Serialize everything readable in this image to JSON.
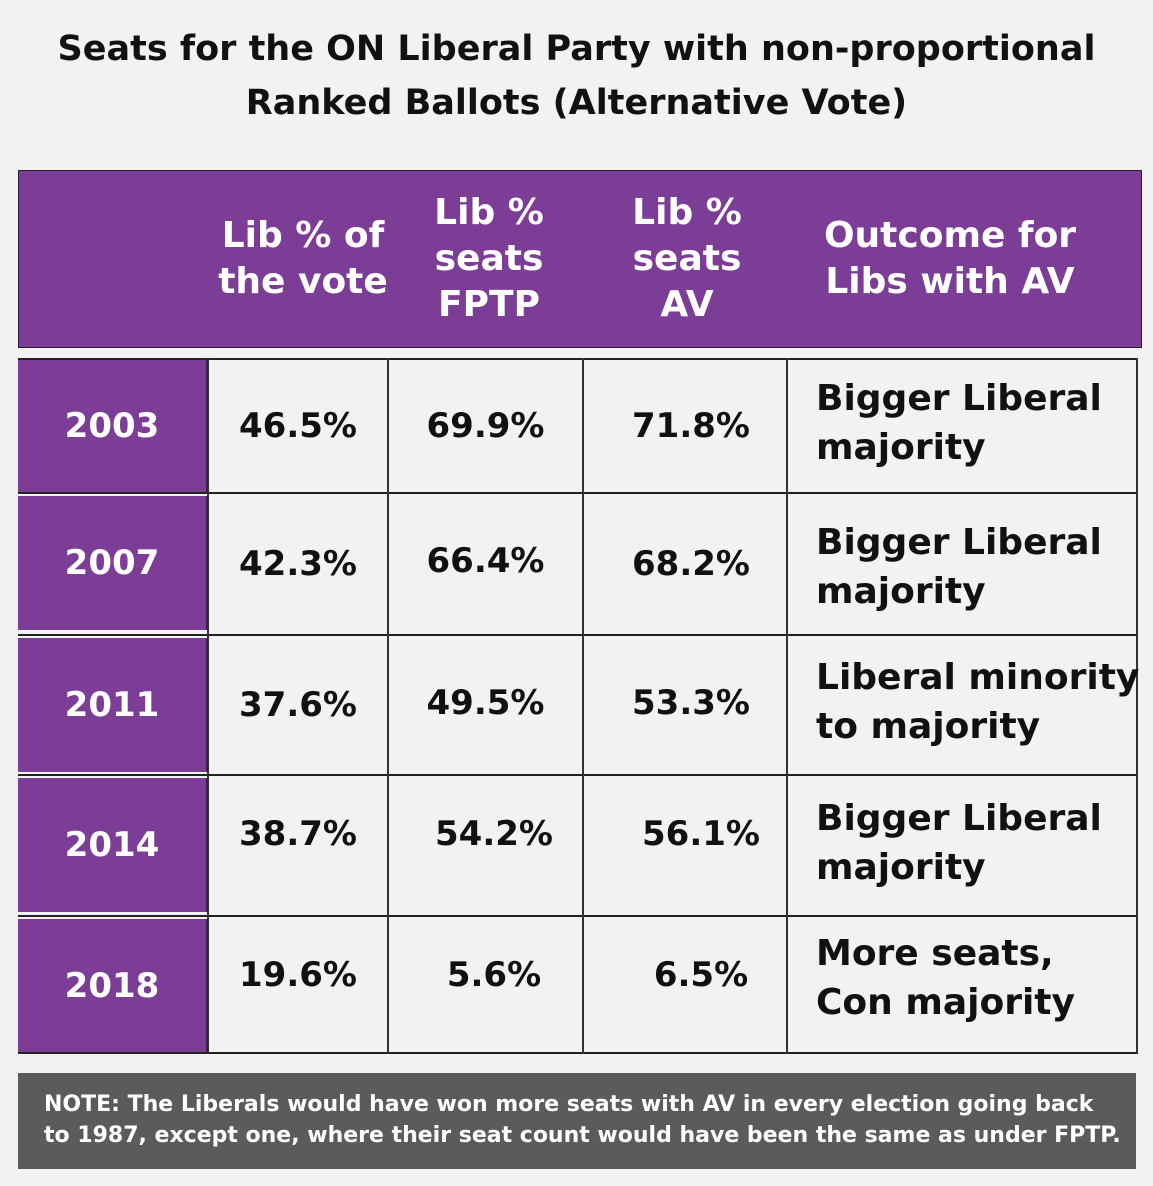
{
  "title": {
    "line1": "Seats for the ON Liberal Party with non-proportional",
    "line2": "Ranked Ballots (Alternative Vote)"
  },
  "chart_data": {
    "type": "table",
    "title": "Seats for the ON Liberal Party with non-proportional Ranked Ballots (Alternative Vote)",
    "columns": [
      {
        "line1": "Lib % of",
        "line2": "the vote"
      },
      {
        "line1": "Lib %",
        "line2": "seats",
        "line3": "FPTP"
      },
      {
        "line1": "Lib %",
        "line2": "seats",
        "line3": "AV"
      },
      {
        "line1": "Outcome for",
        "line2": "Libs with AV"
      }
    ],
    "rows": [
      {
        "year": "2003",
        "vote": "46.5%",
        "fptp": "69.9%",
        "av": "71.8%",
        "outcome1": "Bigger Liberal",
        "outcome2": "majority"
      },
      {
        "year": "2007",
        "vote": "42.3%",
        "fptp": "66.4%",
        "av": "68.2%",
        "outcome1": "Bigger Liberal",
        "outcome2": "majority"
      },
      {
        "year": "2011",
        "vote": "37.6%",
        "fptp": "49.5%",
        "av": "53.3%",
        "outcome1": "Liberal minority",
        "outcome2": "to majority"
      },
      {
        "year": "2014",
        "vote": "38.7%",
        "fptp": "54.2%",
        "av": "56.1%",
        "outcome1": "Bigger Liberal",
        "outcome2": "majority"
      },
      {
        "year": "2018",
        "vote": "19.6%",
        "fptp": "5.6%",
        "av": "6.5%",
        "outcome1": "More seats,",
        "outcome2": "Con majority"
      }
    ]
  },
  "note": {
    "line1": "NOTE: The Liberals would have won more seats with AV in every election going back",
    "line2": "to 1987, except one, where their seat count would have been the same as under FPTP."
  },
  "colors": {
    "purple": "#7b3d96",
    "note_bg": "#5b5b5c",
    "page_bg": "#f2f2f2"
  }
}
